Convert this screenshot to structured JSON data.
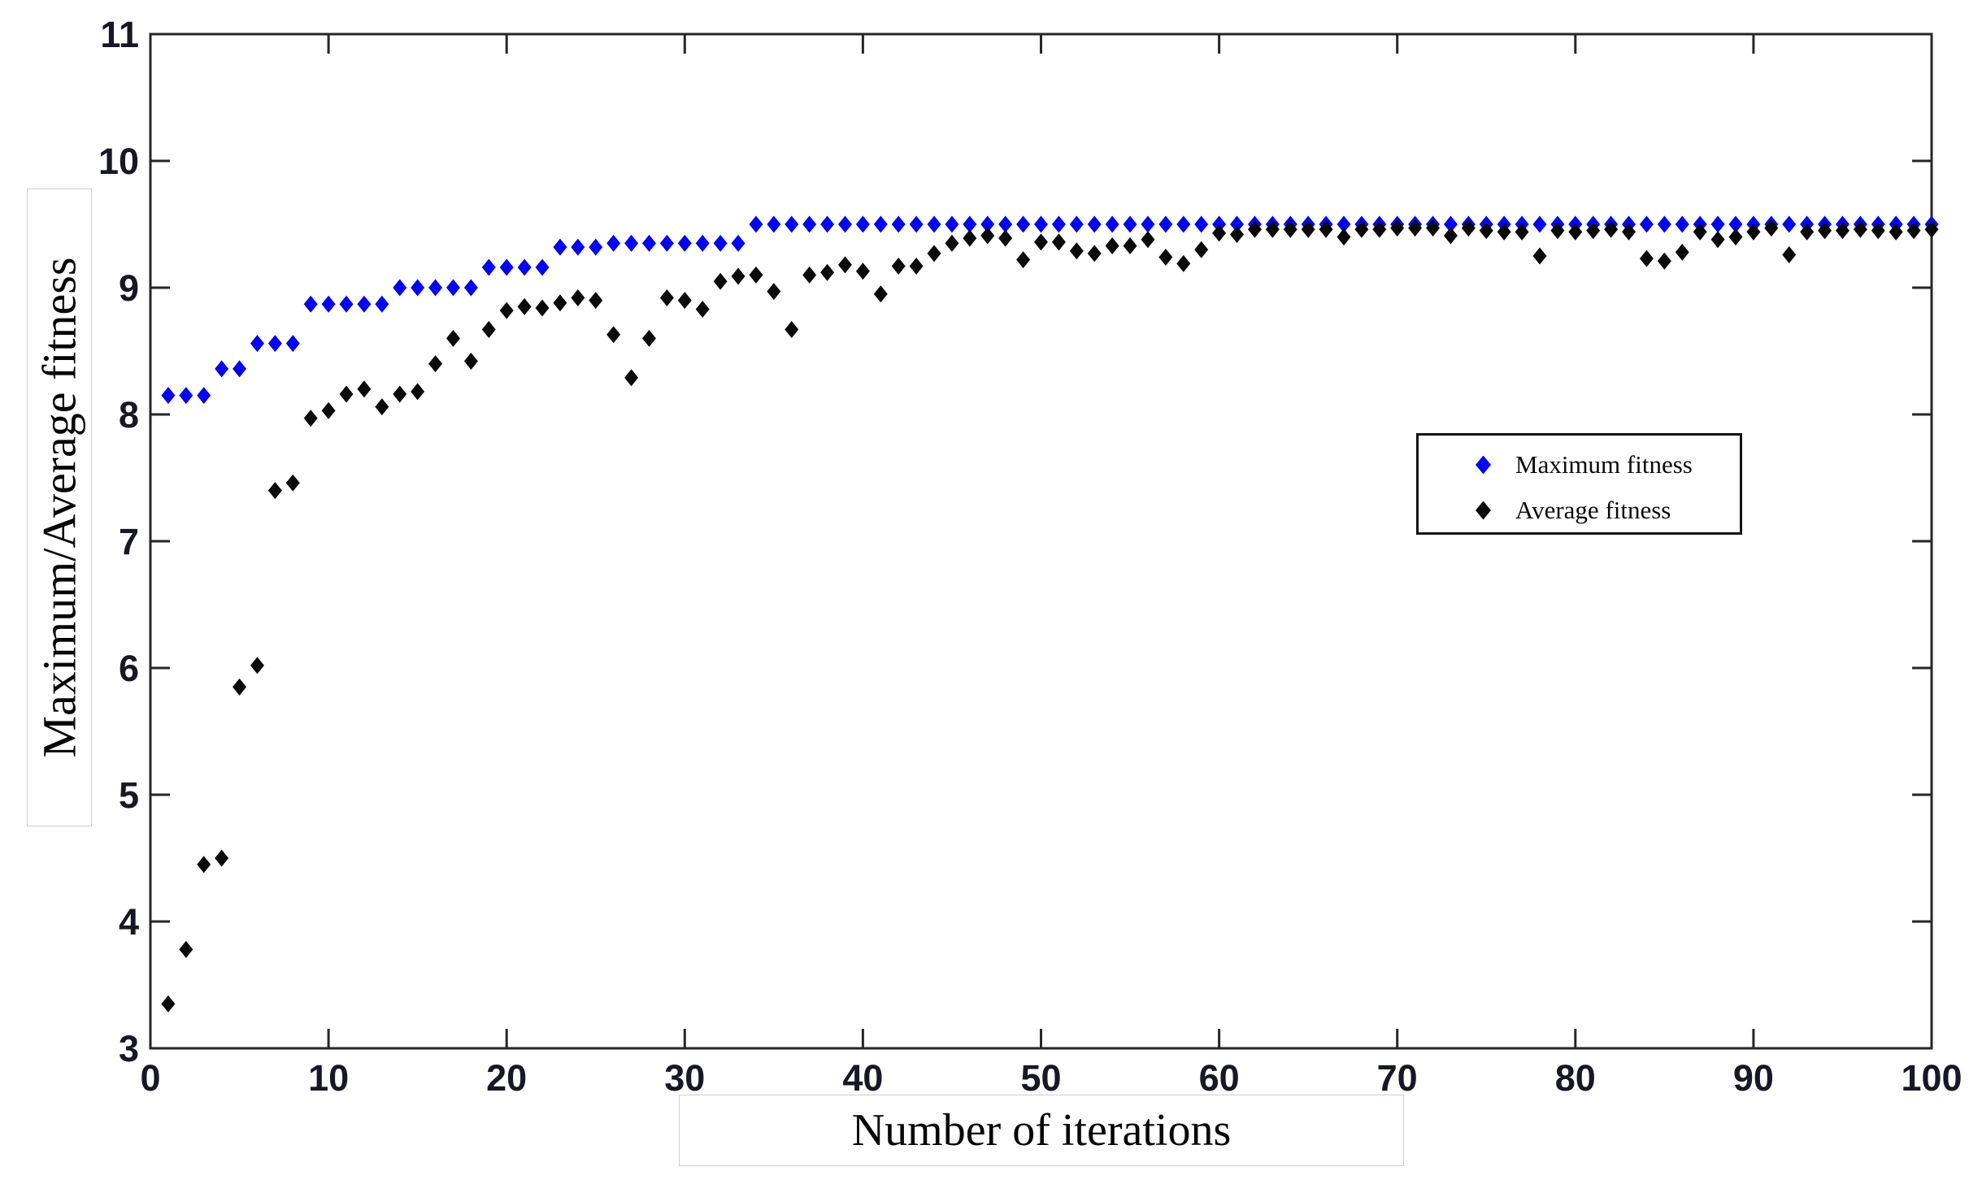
{
  "figure": {
    "background": "#ffffff",
    "border_color": "#262626",
    "tick_label_color": "#171726"
  },
  "chart_data": {
    "type": "scatter",
    "title": "",
    "xlabel": "Number of iterations",
    "ylabel": "Maximum/Average fitness",
    "xlim": [
      0,
      100
    ],
    "ylim": [
      3,
      11
    ],
    "xticks": [
      0,
      10,
      20,
      30,
      40,
      50,
      60,
      70,
      80,
      90,
      100
    ],
    "yticks": [
      3,
      4,
      5,
      6,
      7,
      8,
      9,
      10,
      11
    ],
    "grid": false,
    "legend_position": "inside-right",
    "x_values": "iterations 1..100 (index+1)",
    "marker": "diamond",
    "series": [
      {
        "name": "Maximum fitness",
        "color": "#0404ee",
        "values": [
          8.15,
          8.15,
          8.15,
          8.36,
          8.36,
          8.56,
          8.56,
          8.56,
          8.87,
          8.87,
          8.87,
          8.87,
          8.87,
          9.0,
          9.0,
          9.0,
          9.0,
          9.0,
          9.16,
          9.16,
          9.16,
          9.16,
          9.32,
          9.32,
          9.32,
          9.35,
          9.35,
          9.35,
          9.35,
          9.35,
          9.35,
          9.35,
          9.35,
          9.5,
          9.5,
          9.5,
          9.5,
          9.5,
          9.5,
          9.5,
          9.5,
          9.5,
          9.5,
          9.5,
          9.5,
          9.5,
          9.5,
          9.5,
          9.5,
          9.5,
          9.5,
          9.5,
          9.5,
          9.5,
          9.5,
          9.5,
          9.5,
          9.5,
          9.5,
          9.5,
          9.5,
          9.5,
          9.5,
          9.5,
          9.5,
          9.5,
          9.5,
          9.5,
          9.5,
          9.5,
          9.5,
          9.5,
          9.5,
          9.5,
          9.5,
          9.5,
          9.5,
          9.5,
          9.5,
          9.5,
          9.5,
          9.5,
          9.5,
          9.5,
          9.5,
          9.5,
          9.5,
          9.5,
          9.5,
          9.5,
          9.5,
          9.5,
          9.5,
          9.5,
          9.5,
          9.5,
          9.5,
          9.5,
          9.5,
          9.5
        ]
      },
      {
        "name": "Average fitness",
        "color": "#0a0a0a",
        "values": [
          3.35,
          3.78,
          4.45,
          4.5,
          5.85,
          6.02,
          7.4,
          7.46,
          7.97,
          8.03,
          8.16,
          8.2,
          8.06,
          8.16,
          8.18,
          8.4,
          8.6,
          8.42,
          8.67,
          8.82,
          8.85,
          8.84,
          8.88,
          8.92,
          8.9,
          8.63,
          8.29,
          8.6,
          8.92,
          8.9,
          8.83,
          9.05,
          9.09,
          9.1,
          8.97,
          8.67,
          9.1,
          9.12,
          9.18,
          9.13,
          8.95,
          9.17,
          9.17,
          9.27,
          9.35,
          9.39,
          9.41,
          9.39,
          9.22,
          9.36,
          9.36,
          9.29,
          9.27,
          9.33,
          9.33,
          9.38,
          9.24,
          9.19,
          9.3,
          9.43,
          9.42,
          9.46,
          9.46,
          9.46,
          9.46,
          9.46,
          9.4,
          9.46,
          9.46,
          9.47,
          9.47,
          9.47,
          9.41,
          9.47,
          9.45,
          9.44,
          9.44,
          9.25,
          9.45,
          9.44,
          9.45,
          9.46,
          9.44,
          9.23,
          9.21,
          9.28,
          9.44,
          9.38,
          9.4,
          9.44,
          9.47,
          9.26,
          9.44,
          9.45,
          9.45,
          9.46,
          9.45,
          9.44,
          9.45,
          9.46
        ]
      }
    ]
  },
  "legend": {
    "items": [
      {
        "label": "Maximum fitness",
        "color": "#0404ee"
      },
      {
        "label": "Average fitness",
        "color": "#0a0a0a"
      }
    ]
  }
}
